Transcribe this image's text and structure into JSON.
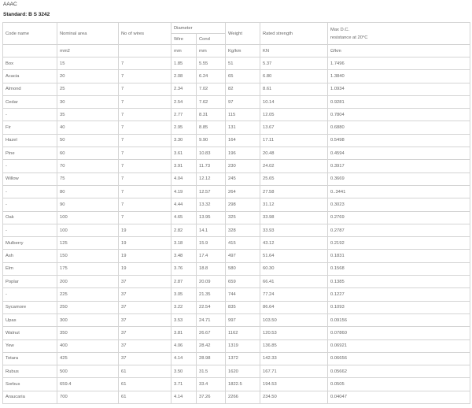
{
  "title": "AAAC",
  "standard": "Standard: B S 3242",
  "headers": {
    "code_name": "Code name",
    "nominal_area": "Nominal area",
    "no_of_wires": "No of wires",
    "diameter": "Diameter",
    "wire": "Wire",
    "cond": "Cond",
    "weight": "Weight",
    "rated_strength": "Rated strength",
    "max_dc_line1": "Max D.C.",
    "max_dc_line2": "resistance at 20°C"
  },
  "units": [
    "",
    "mm2",
    "",
    "mm",
    "mm",
    "Kg/km",
    "KN",
    "Ω/km"
  ],
  "rows": [
    [
      "Box",
      "15",
      "7",
      "1.85",
      "5.55",
      "51",
      "5.37",
      "1.7496"
    ],
    [
      "Acacia",
      "20",
      "7",
      "2.08",
      "6.24",
      "65",
      "6.80",
      "1.3840"
    ],
    [
      "Almond",
      "25",
      "7",
      "2.34",
      "7.02",
      "82",
      "8.61",
      "1.0934"
    ],
    [
      "Cedar",
      "30",
      "7",
      "2.54",
      "7.62",
      "97",
      "10.14",
      "0.9281"
    ],
    [
      "-",
      "35",
      "7",
      "2.77",
      "8.31",
      "115",
      "12.05",
      "0.7804"
    ],
    [
      "Fir",
      "40",
      "7",
      "2.95",
      "8.85",
      "131",
      "13.67",
      "0.6880"
    ],
    [
      "Hazel",
      "50",
      "7",
      "3.30",
      "9.90",
      "164",
      "17.11",
      "0.5498"
    ],
    [
      "Pine",
      "60",
      "7",
      "3.61",
      "10.83",
      "196",
      "20.48",
      "0.4594"
    ],
    [
      "-",
      "70",
      "7",
      "3.91",
      "11.73",
      "230",
      "24.02",
      "0.3917"
    ],
    [
      "Willow",
      "75",
      "7",
      "4.04",
      "12.12",
      "245",
      "25.65",
      "0.3669"
    ],
    [
      "-",
      "80",
      "7",
      "4.19",
      "12.57",
      "264",
      "27.58",
      "0..3441"
    ],
    [
      "-",
      "90",
      "7",
      "4.44",
      "13.32",
      "298",
      "31.12",
      "0.3023"
    ],
    [
      "Oak",
      "100",
      "7",
      "4.65",
      "13.95",
      "325",
      "33.98",
      "0.2769"
    ],
    [
      "-",
      "100",
      "19",
      "2.82",
      "14.1",
      "328",
      "33.93",
      "0.2787"
    ],
    [
      "Mulberry",
      "125",
      "19",
      "3.18",
      "15.9",
      "415",
      "43.12",
      "0.2192"
    ],
    [
      "Ash",
      "150",
      "19",
      "3.48",
      "17.4",
      "497",
      "51.64",
      "0.1831"
    ],
    [
      "Elm",
      "175",
      "19",
      "3.76",
      "18.8",
      "580",
      "60.30",
      "0.1568"
    ],
    [
      "Poplar",
      "200",
      "37",
      "2.87",
      "20.09",
      "659",
      "66.41",
      "0.1385"
    ],
    [
      "-",
      "225",
      "37",
      "3.05",
      "21.35",
      "744",
      "77.24",
      "0.1227"
    ],
    [
      "Sycamore",
      "250",
      "37",
      "3.22",
      "22.54",
      "835",
      "86.64",
      "0.1093"
    ],
    [
      "Upas",
      "300",
      "37",
      "3.53",
      "24.71",
      "997",
      "103.50",
      "0.09156"
    ],
    [
      "Walnut",
      "350",
      "37",
      "3.81",
      "26.67",
      "1162",
      "120.53",
      "0.07860"
    ],
    [
      "Yew",
      "400",
      "37",
      "4.06",
      "28.42",
      "1319",
      "136.85",
      "0.06921"
    ],
    [
      "Totara",
      "425",
      "37",
      "4.14",
      "28.98",
      "1372",
      "142.33",
      "0.06656"
    ],
    [
      "Rubus",
      "500",
      "61",
      "3.50",
      "31.5",
      "1620",
      "167.71",
      "0.05662"
    ],
    [
      "Sorbus",
      "659.4",
      "61",
      "3.71",
      "33.4",
      "1822.5",
      "194.53",
      "0.0505"
    ],
    [
      "Araucaria",
      "700",
      "61",
      "4.14",
      "37.26",
      "2266",
      "234.50",
      "0.04047"
    ]
  ]
}
